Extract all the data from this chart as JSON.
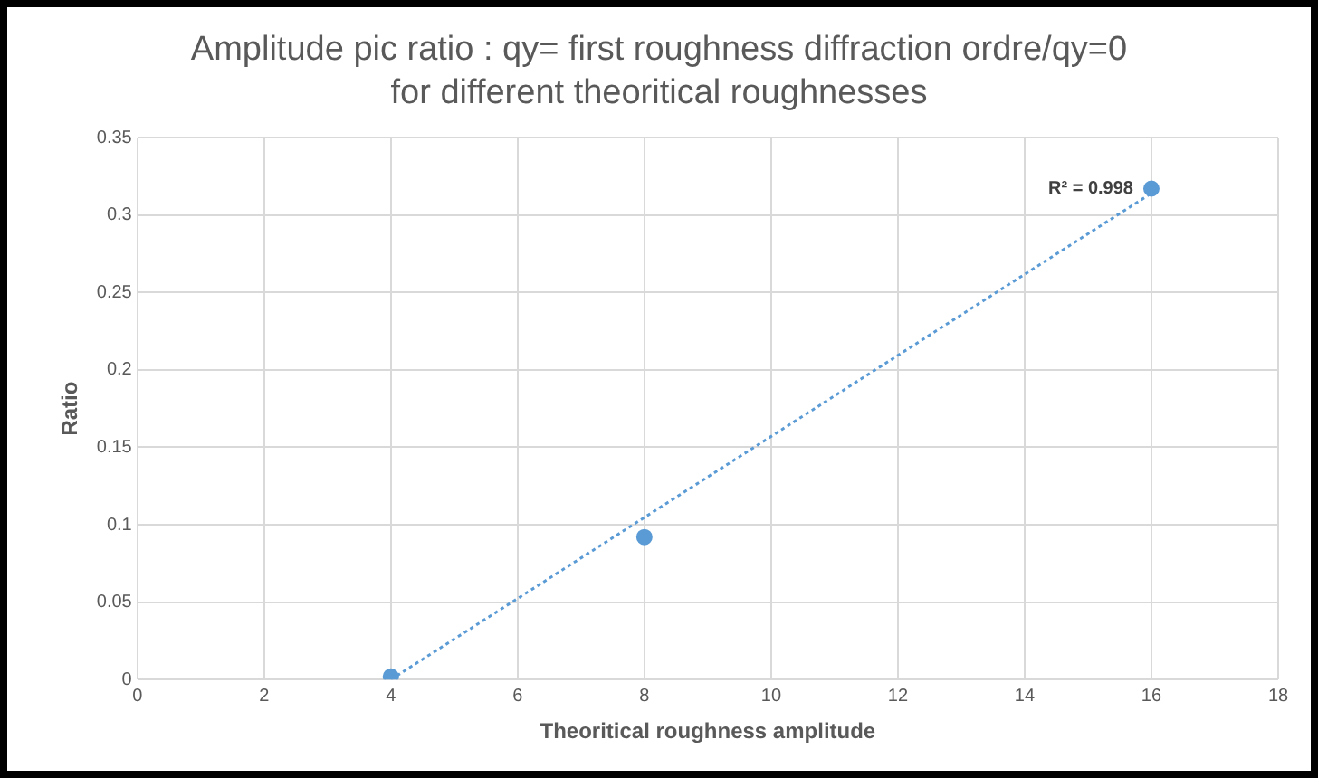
{
  "chart_data": {
    "type": "scatter",
    "title": "Amplitude pic ratio : qy= first roughness diffraction ordre/qy=0 for different theoritical roughnesses",
    "xlabel": "Theoritical roughness amplitude",
    "ylabel": "Ratio",
    "series": [
      {
        "color": "#5b9bd5",
        "x": [
          4,
          8,
          16
        ],
        "values": [
          0.002,
          0.092,
          0.317
        ]
      },
      {
        "type": "line",
        "color": "#5b9bd5",
        "line_style": "dotted",
        "marker": "none",
        "x": [
          4,
          16
        ],
        "values": [
          0,
          0.314
        ]
      }
    ],
    "xlim": [
      0,
      18
    ],
    "xticks": [
      0,
      2,
      4,
      6,
      8,
      10,
      12,
      14,
      16,
      18
    ],
    "ylim": [
      0,
      0.35
    ],
    "yticks": [
      0,
      0.05,
      0.1,
      0.15,
      0.2,
      0.25,
      0.3,
      0.35
    ],
    "grid": true,
    "legend": false,
    "marker": "circle",
    "annotations": [
      {
        "text": "R² = 0.998",
        "x": 16,
        "y": 0.317
      }
    ]
  }
}
